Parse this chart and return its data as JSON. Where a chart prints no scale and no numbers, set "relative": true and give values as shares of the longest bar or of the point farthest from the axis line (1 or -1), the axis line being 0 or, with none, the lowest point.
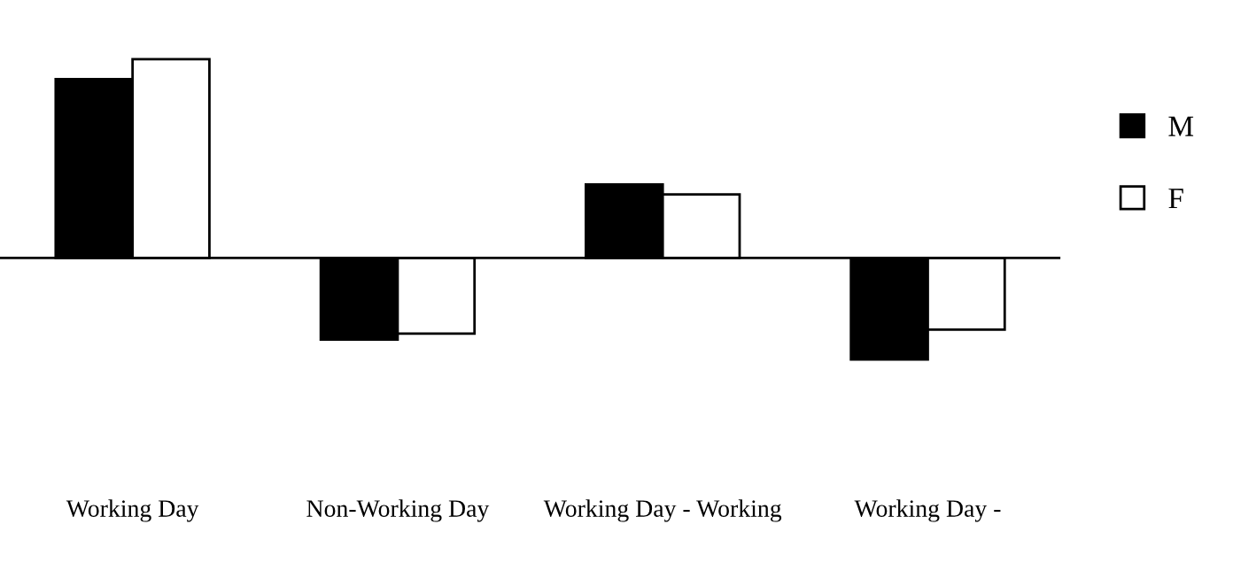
{
  "chart_data": {
    "type": "bar",
    "relative": true,
    "categories": [
      "Working Day",
      "Non-Working Day",
      "Working Day - Working",
      "Working Day -"
    ],
    "series": [
      {
        "name": "M",
        "color": "#000000",
        "values": [
          0.9,
          -0.41,
          0.37,
          -0.51
        ]
      },
      {
        "name": "F",
        "color": "#ffffff",
        "values": [
          1,
          -0.38,
          0.32,
          -0.36
        ]
      }
    ],
    "legend": "top right"
  }
}
